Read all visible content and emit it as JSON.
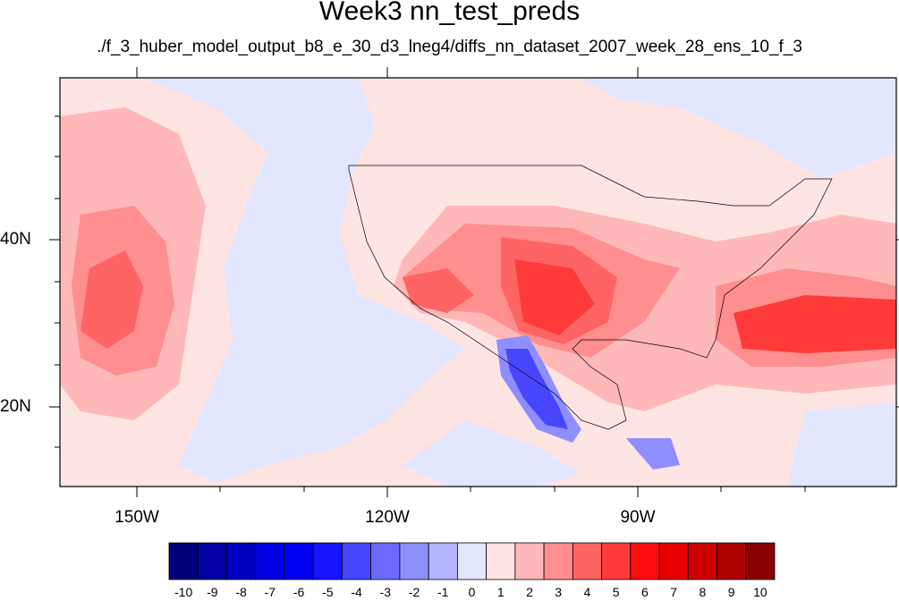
{
  "title": "Week3 nn_test_preds",
  "subtitle": "./f_3_huber_model_output_b8_e_30_d3_lneg4/diffs_nn_dataset_2007_week_28_ens_10_f_3",
  "map": {
    "x_tick_labels": [
      "150W",
      "120W",
      "90W"
    ],
    "y_tick_labels": [
      "40N",
      "20N"
    ]
  },
  "colorbar": {
    "labels": [
      "-10",
      "-9",
      "-8",
      "-7",
      "-6",
      "-5",
      "-4",
      "-3",
      "-2",
      "-1",
      "0",
      "1",
      "2",
      "3",
      "4",
      "5",
      "6",
      "7",
      "8",
      "9",
      "10"
    ],
    "colors": [
      "#00007a",
      "#0000a4",
      "#0000c4",
      "#0000e0",
      "#0000f4",
      "#1414ff",
      "#4646ff",
      "#6a6aff",
      "#8e8eff",
      "#b4b4ff",
      "#e3e6ff",
      "#ffe4e4",
      "#ffb8b8",
      "#ff8e8e",
      "#ff6464",
      "#ff3a3a",
      "#ff0c0c",
      "#e80000",
      "#cc0000",
      "#aa0000",
      "#8a0000"
    ]
  }
}
